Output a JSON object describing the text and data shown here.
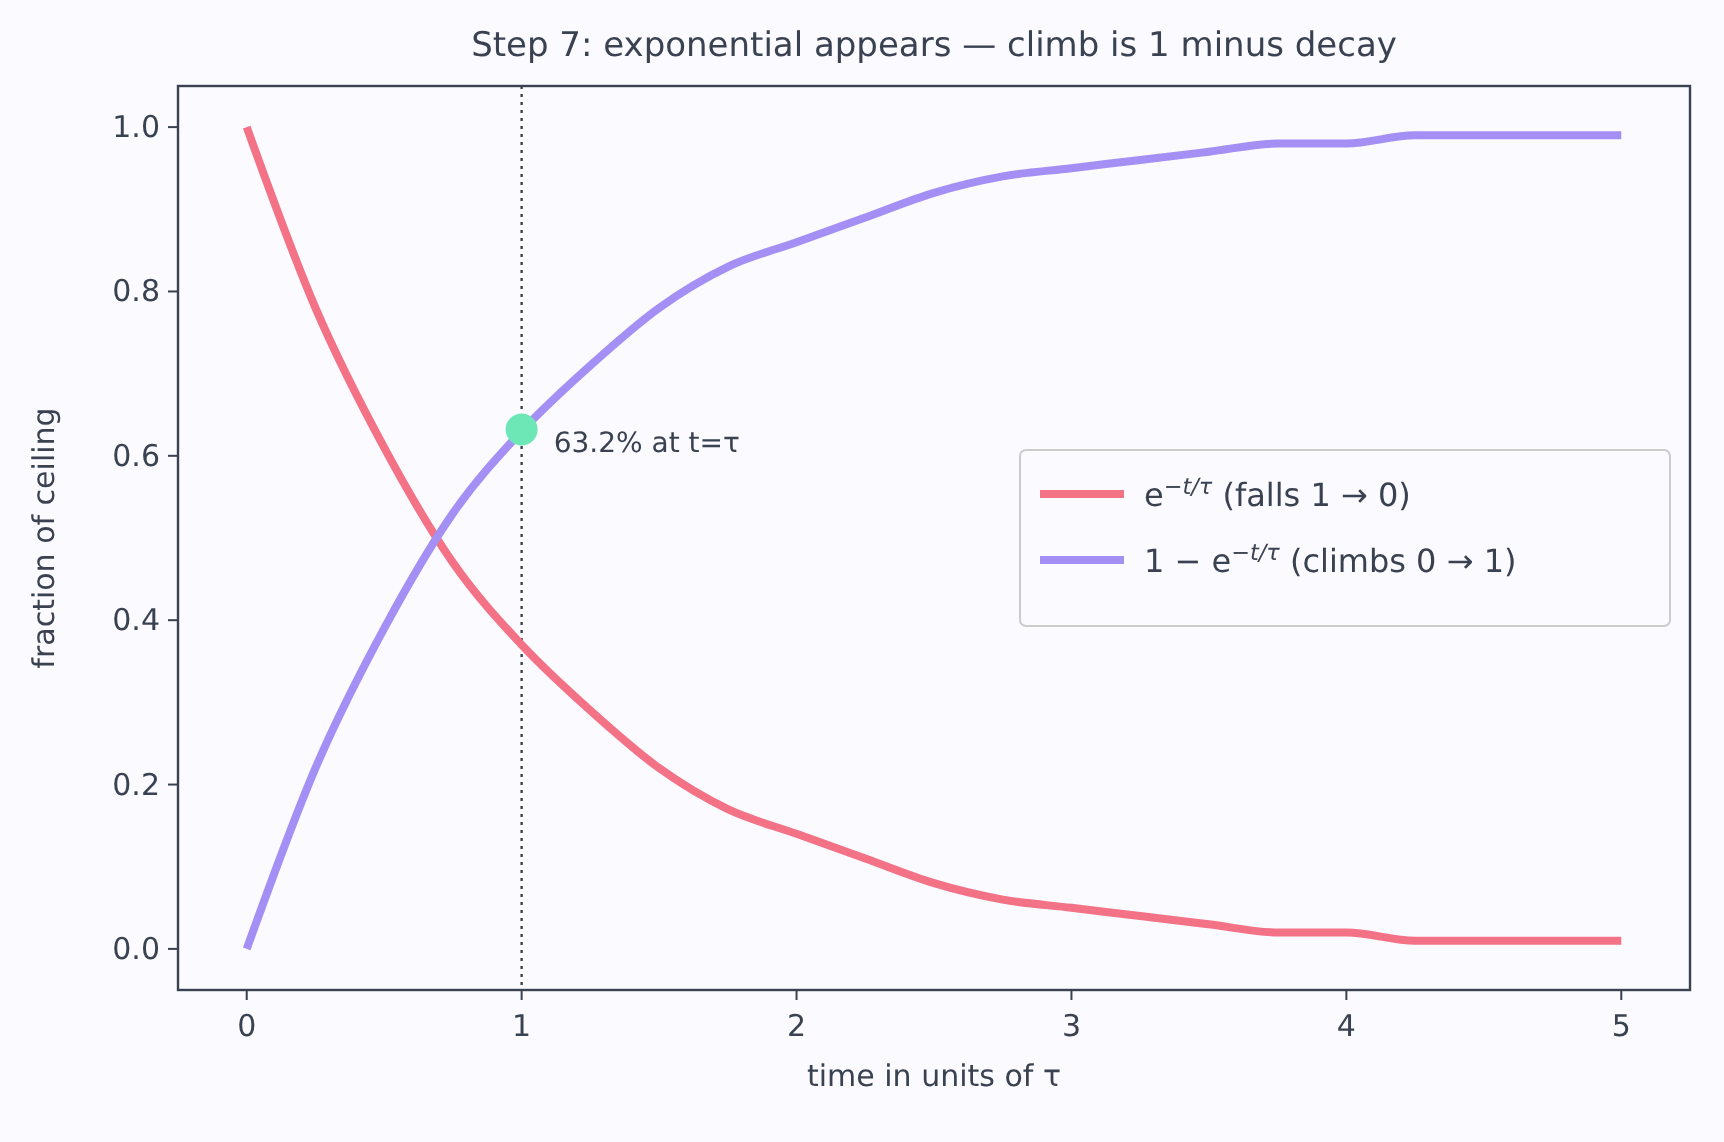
{
  "chart_data": {
    "type": "line",
    "title": "Step 7: exponential appears — climb is 1 minus decay",
    "xlabel": "time in units of τ",
    "ylabel": "fraction of ceiling",
    "x": [
      0,
      0.25,
      0.5,
      0.75,
      1,
      1.25,
      1.5,
      1.75,
      2,
      2.25,
      2.5,
      2.75,
      3,
      3.25,
      3.5,
      3.75,
      4,
      4.25,
      4.5,
      4.75,
      5
    ],
    "series": [
      {
        "name": "e$^{−t/τ}$ (falls 1 → 0)",
        "color": "#f47286",
        "marker": "none",
        "values": [
          1,
          0.78,
          0.61,
          0.47,
          0.37,
          0.29,
          0.22,
          0.17,
          0.14,
          0.11,
          0.08,
          0.06,
          0.05,
          0.04,
          0.03,
          0.02,
          0.02,
          0.01,
          0.01,
          0.01,
          0.01
        ]
      },
      {
        "name": "1 − e$^{−t/τ}$ (climbs 0 → 1)",
        "color": "#a48ff5",
        "marker": "none",
        "values": [
          0,
          0.22,
          0.39,
          0.53,
          0.63,
          0.71,
          0.78,
          0.83,
          0.86,
          0.89,
          0.92,
          0.94,
          0.95,
          0.96,
          0.97,
          0.98,
          0.98,
          0.99,
          0.99,
          0.99,
          0.99
        ]
      },
      {
        "type": "scatter",
        "color": "#6ee7b7",
        "marker": "circle",
        "x": [
          1
        ],
        "values": [
          0.632
        ]
      }
    ],
    "annotations": [
      {
        "text": "63.2% at t=τ",
        "x": 1,
        "y": 0.632
      }
    ],
    "ref_lines": [
      {
        "axis": "x",
        "value": 1,
        "color": "#3a4252",
        "line_style": "dotted"
      }
    ],
    "xlim": [
      -0.25,
      5.25
    ],
    "ylim": [
      -0.05,
      1.05
    ],
    "xticks": [
      0,
      1,
      2,
      3,
      4,
      5
    ],
    "yticks": [
      {
        "value": 0,
        "label": "0.0"
      },
      {
        "value": 0.2,
        "label": "0.2"
      },
      {
        "value": 0.4,
        "label": "0.4"
      },
      {
        "value": 0.6,
        "label": "0.6"
      },
      {
        "value": 0.8,
        "label": "0.8"
      },
      {
        "value": 1,
        "label": "1.0"
      }
    ],
    "grid": false,
    "legend": "center right",
    "line_style": "solid"
  }
}
